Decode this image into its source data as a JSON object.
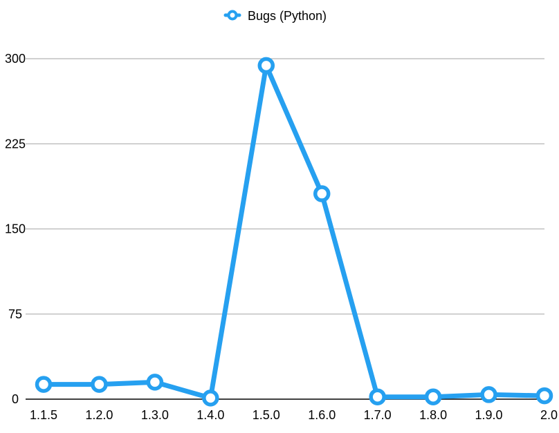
{
  "chart_data": {
    "type": "line",
    "title": "",
    "xlabel": "",
    "ylabel": "",
    "categories": [
      "1.1.5",
      "1.2.0",
      "1.3.0",
      "1.4.0",
      "1.5.0",
      "1.6.0",
      "1.7.0",
      "1.8.0",
      "1.9.0",
      "2.0"
    ],
    "series": [
      {
        "name": "Bugs (Python)",
        "values": [
          13,
          13,
          15,
          1,
          294,
          181,
          2,
          2,
          4,
          3
        ],
        "color": "#26a0f0"
      }
    ],
    "ylim": [
      0,
      300
    ],
    "yticks": [
      0,
      75,
      150,
      225,
      300
    ],
    "grid": true,
    "legend": "top-center"
  }
}
